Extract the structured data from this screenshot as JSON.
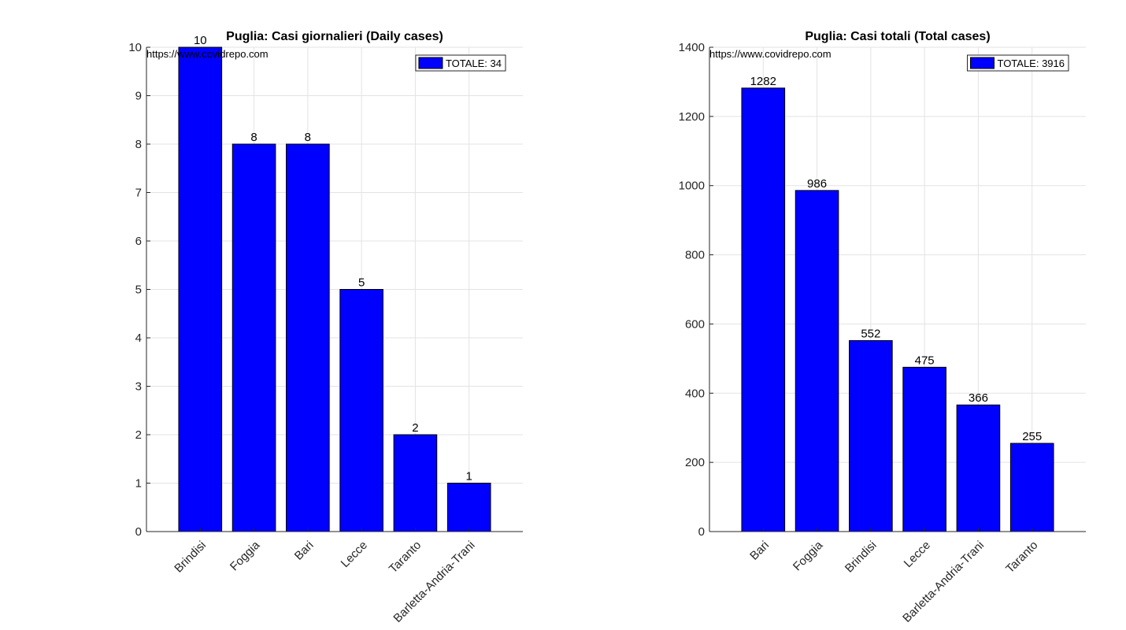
{
  "chart_data": [
    {
      "type": "bar",
      "title": "Puglia: Casi giornalieri (Daily cases)",
      "watermark": "https://www.covidrepo.com",
      "categories": [
        "Brindisi",
        "Foggia",
        "Bari",
        "Lecce",
        "Taranto",
        "Barletta-Andria-Trani"
      ],
      "values": [
        10,
        8,
        8,
        5,
        2,
        1
      ],
      "value_labels": [
        "10",
        "8",
        "8",
        "5",
        "2",
        "1"
      ],
      "ylim": [
        0,
        10
      ],
      "yticks": [
        0,
        1,
        2,
        3,
        4,
        5,
        6,
        7,
        8,
        9,
        10
      ],
      "grid": true,
      "legend": {
        "label": "TOTALE: 34",
        "position": "top-right"
      },
      "bar_color": "#0000ff",
      "xlabel": "",
      "ylabel": ""
    },
    {
      "type": "bar",
      "title": "Puglia: Casi totali (Total cases)",
      "watermark": "https://www.covidrepo.com",
      "categories": [
        "Bari",
        "Foggia",
        "Brindisi",
        "Lecce",
        "Barletta-Andria-Trani",
        "Taranto"
      ],
      "values": [
        1282,
        986,
        552,
        475,
        366,
        255
      ],
      "value_labels": [
        "1282",
        "986",
        "552",
        "475",
        "366",
        "255"
      ],
      "ylim": [
        0,
        1400
      ],
      "yticks": [
        0,
        200,
        400,
        600,
        800,
        1000,
        1200,
        1400
      ],
      "grid": true,
      "legend": {
        "label": "TOTALE: 3916",
        "position": "top-right"
      },
      "bar_color": "#0000ff",
      "xlabel": "",
      "ylabel": ""
    }
  ]
}
